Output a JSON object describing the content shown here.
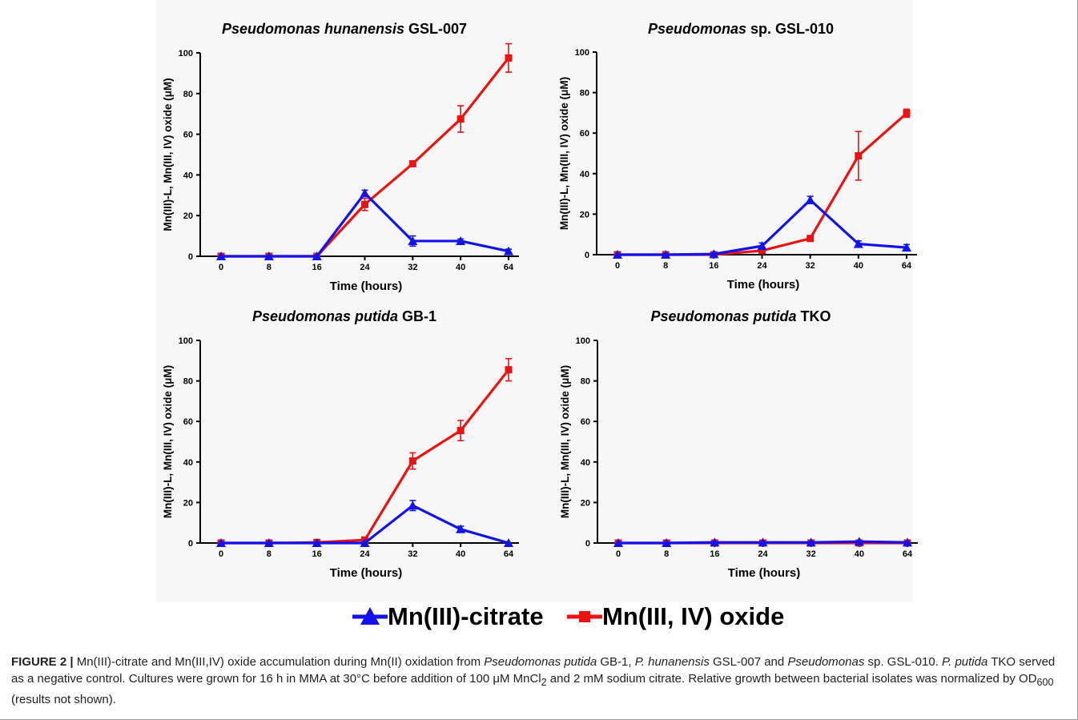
{
  "figure": {
    "caption": {
      "label": "FIGURE 2 |",
      "parts": [
        {
          "text": " Mn(III)-citrate and Mn(III,IV) oxide accumulation during Mn(II) oxidation from "
        },
        {
          "text": "Pseudomonas putida",
          "italic": true
        },
        {
          "text": " GB-1, "
        },
        {
          "text": "P. hunanensis",
          "italic": true
        },
        {
          "text": " GSL-007 and "
        },
        {
          "text": "Pseudomonas",
          "italic": true
        },
        {
          "text": " sp. GSL-010. "
        },
        {
          "text": "P. putida",
          "italic": true
        },
        {
          "text": " TKO served as a negative control. Cultures were grown for 16 h in MMA at 30°C before addition of 100 μM MnCl"
        },
        {
          "text": "2",
          "sub": true
        },
        {
          "text": " and 2 mM sodium citrate. Relative growth between bacterial isolates was normalized by OD"
        },
        {
          "text": "600",
          "sub": true
        },
        {
          "text": " (results not shown)."
        }
      ]
    },
    "legend": [
      {
        "label": "Mn(III)-citrate",
        "marker": "triangle",
        "color": "#1212ee"
      },
      {
        "label": "Mn(III, IV) oxide",
        "marker": "square",
        "color": "#ee1111"
      }
    ]
  },
  "chart_data": [
    {
      "type": "line",
      "title_italic": "Pseudomonas hunanensis",
      "title_plain": "GSL-007",
      "xlabel": "Time (hours)",
      "ylabel": "Mn(III)-L, Mn(III, IV) oxide (μM)",
      "categories": [
        "0",
        "8",
        "16",
        "24",
        "32",
        "40",
        "64"
      ],
      "ylim": [
        0,
        100
      ],
      "yticks": [
        0,
        20,
        40,
        60,
        80,
        100
      ],
      "series": [
        {
          "name": "Mn(III)-citrate",
          "color": "#1212ee",
          "marker": "triangle",
          "values": [
            0,
            0,
            0,
            31,
            7.5,
            7.5,
            2.5
          ],
          "errors": [
            0,
            0,
            0,
            1.5,
            2.5,
            1,
            1
          ]
        },
        {
          "name": "Mn(III, IV) oxide",
          "color": "#ee1111",
          "marker": "square",
          "values": [
            0,
            0,
            0,
            25.5,
            45.5,
            67.5,
            97.5
          ],
          "errors": [
            0,
            0,
            0,
            3,
            0.5,
            6.5,
            7
          ]
        }
      ]
    },
    {
      "type": "line",
      "title_italic": "Pseudomonas",
      "title_plain": "sp. GSL-010",
      "xlabel": "Time (hours)",
      "ylabel": "Mn(III)-L, Mn(III, IV) oxide (μM)",
      "categories": [
        "0",
        "8",
        "16",
        "24",
        "32",
        "40",
        "64"
      ],
      "ylim": [
        0,
        100
      ],
      "yticks": [
        0,
        20,
        40,
        60,
        80,
        100
      ],
      "series": [
        {
          "name": "Mn(III)-citrate",
          "color": "#1212ee",
          "marker": "triangle",
          "values": [
            0,
            0,
            0.3,
            4.3,
            27,
            5.3,
            3.5
          ],
          "errors": [
            0,
            0,
            0.3,
            1.5,
            1.8,
            1.5,
            1.5
          ]
        },
        {
          "name": "Mn(III, IV) oxide",
          "color": "#ee1111",
          "marker": "square",
          "values": [
            0,
            0,
            0,
            2,
            8,
            48.8,
            69.8
          ],
          "errors": [
            0,
            0,
            0,
            0.5,
            0.5,
            12,
            2
          ]
        }
      ]
    },
    {
      "type": "line",
      "title_italic": "Pseudomonas putida",
      "title_plain": "GB-1",
      "xlabel": "Time (hours)",
      "ylabel": "Mn(III)-L, Mn(III, IV) oxide (μM)",
      "categories": [
        "0",
        "8",
        "16",
        "24",
        "32",
        "40",
        "64"
      ],
      "ylim": [
        0,
        100
      ],
      "yticks": [
        0,
        20,
        40,
        60,
        80,
        100
      ],
      "series": [
        {
          "name": "Mn(III)-citrate",
          "color": "#1212ee",
          "marker": "triangle",
          "values": [
            0,
            0,
            0,
            0,
            18.5,
            6.8,
            0
          ],
          "errors": [
            0,
            0,
            0,
            0,
            2.5,
            1.5,
            0
          ]
        },
        {
          "name": "Mn(III, IV) oxide",
          "color": "#ee1111",
          "marker": "square",
          "values": [
            0,
            0,
            0.3,
            1.5,
            40.5,
            55.5,
            85.5
          ],
          "errors": [
            0,
            0,
            0.3,
            0.5,
            4,
            5,
            5.5
          ]
        }
      ]
    },
    {
      "type": "line",
      "title_italic": "Pseudomonas putida",
      "title_plain": "TKO",
      "xlabel": "Time (hours)",
      "ylabel": "Mn(III)-L, Mn(III, IV) oxide (μM)",
      "categories": [
        "0",
        "8",
        "16",
        "24",
        "32",
        "40",
        "64"
      ],
      "ylim": [
        0,
        100
      ],
      "yticks": [
        0,
        20,
        40,
        60,
        80,
        100
      ],
      "series": [
        {
          "name": "Mn(III)-citrate",
          "color": "#1212ee",
          "marker": "triangle",
          "values": [
            0,
            0,
            0.3,
            0.3,
            0.3,
            0.7,
            0.3
          ],
          "errors": [
            0,
            0,
            0,
            0,
            0,
            0.3,
            0
          ]
        },
        {
          "name": "Mn(III, IV) oxide",
          "color": "#ee1111",
          "marker": "square",
          "values": [
            0,
            0,
            0,
            0,
            0,
            0,
            0
          ],
          "errors": [
            0,
            0,
            0,
            0,
            0,
            0,
            0
          ]
        }
      ]
    }
  ]
}
